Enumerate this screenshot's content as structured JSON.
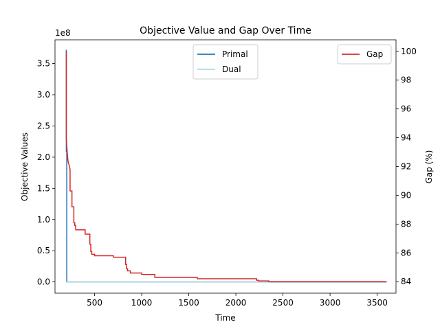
{
  "chart_data": {
    "type": "line",
    "title": "Objective Value and Gap Over Time",
    "xlabel": "Time",
    "ylabel_left": "Objective Values",
    "ylabel_right": "Gap (%)",
    "left_axis_multiplier": "1e8",
    "xlim": [
      80,
      3700
    ],
    "ylim_left": [
      -0.18,
      3.88
    ],
    "ylim_right": [
      83.2,
      100.8
    ],
    "grid": false,
    "x_ticks": [
      500,
      1000,
      1500,
      2000,
      2500,
      3000,
      3500
    ],
    "y_left_ticks": [
      0.0,
      0.5,
      1.0,
      1.5,
      2.0,
      2.5,
      3.0,
      3.5
    ],
    "y_right_ticks": [
      84,
      86,
      88,
      90,
      92,
      94,
      96,
      98,
      100
    ],
    "legend_left": {
      "placement": "top-center",
      "entries": [
        {
          "name": "Primal",
          "color": "#1f77b4"
        },
        {
          "name": "Dual",
          "color": "#add8e6"
        }
      ]
    },
    "legend_right": {
      "placement": "top-right",
      "entries": [
        {
          "name": "Gap",
          "color": "#d62728"
        }
      ]
    },
    "series": [
      {
        "name": "Primal",
        "axis": "left",
        "color": "#1f77b4",
        "x": [
          200,
          200,
          205,
          205,
          3600
        ],
        "y": [
          3.72,
          2.09,
          2.09,
          0.0,
          0.0
        ]
      },
      {
        "name": "Dual",
        "axis": "left",
        "color": "#add8e6",
        "x": [
          200,
          2360
        ],
        "y": [
          0.0,
          0.0
        ]
      },
      {
        "name": "Gap",
        "axis": "right",
        "color": "#d62728",
        "x": [
          200,
          200,
          205,
          210,
          215,
          220,
          230,
          240,
          240,
          260,
          260,
          280,
          280,
          290,
          290,
          300,
          300,
          400,
          400,
          450,
          450,
          460,
          460,
          470,
          470,
          500,
          500,
          700,
          700,
          830,
          830,
          840,
          840,
          850,
          850,
          880,
          880,
          1000,
          1000,
          1140,
          1140,
          1590,
          1590,
          2220,
          2220,
          2240,
          2240,
          2350,
          2350,
          3600
        ],
        "y": [
          100.0,
          94.0,
          93.4,
          93.0,
          92.6,
          92.3,
          92.1,
          91.8,
          90.3,
          90.3,
          89.2,
          89.2,
          88.1,
          88.1,
          87.9,
          87.9,
          87.6,
          87.6,
          87.3,
          87.3,
          86.6,
          86.6,
          86.1,
          86.1,
          85.9,
          85.9,
          85.8,
          85.8,
          85.7,
          85.7,
          85.2,
          85.2,
          84.9,
          84.9,
          84.75,
          84.75,
          84.6,
          84.6,
          84.5,
          84.5,
          84.3,
          84.3,
          84.2,
          84.2,
          84.1,
          84.1,
          84.05,
          84.05,
          84.0,
          84.0
        ]
      }
    ]
  }
}
